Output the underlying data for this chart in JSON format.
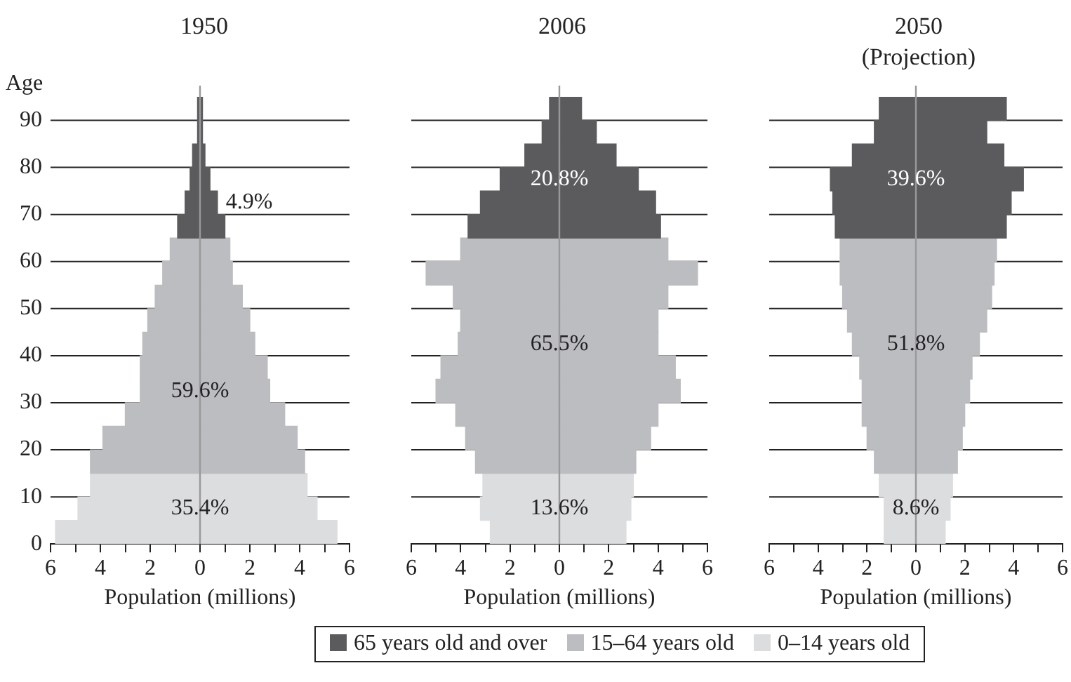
{
  "chart_data": [
    {
      "type": "bar",
      "orientation": "horizontal",
      "stacked": true,
      "title": "1950",
      "xlabel": "Population (millions)",
      "ylabel": "Age",
      "categories": [
        "90",
        null,
        "80",
        null,
        "70",
        null,
        "60",
        null,
        "50",
        null,
        "40",
        null,
        "30",
        null,
        "20",
        null,
        "10",
        null,
        "0"
      ],
      "series": [
        {
          "color": "#5b5b5d",
          "values": [
            0.1,
            0.1,
            0.2,
            0.4,
            0.7,
            1.0,
            null,
            null,
            null,
            null,
            null,
            null,
            null,
            null,
            null,
            null,
            null,
            null,
            null
          ]
        },
        {
          "color": "#bcbdc0",
          "values": [
            null,
            null,
            null,
            null,
            null,
            null,
            1.2,
            1.3,
            1.7,
            2.0,
            2.2,
            2.7,
            2.8,
            3.4,
            3.9,
            4.2,
            null,
            null,
            null
          ]
        },
        {
          "color": "#dcdddf",
          "values": [
            null,
            null,
            null,
            null,
            null,
            null,
            null,
            null,
            null,
            null,
            null,
            null,
            null,
            null,
            null,
            null,
            4.3,
            4.7,
            5.5
          ]
        },
        {
          "color": "#5b5b5d",
          "values": [
            -0.1,
            -0.1,
            -0.3,
            -0.4,
            -0.6,
            -0.9,
            null,
            null,
            null,
            null,
            null,
            null,
            null,
            null,
            null,
            null,
            null,
            null,
            null
          ]
        },
        {
          "color": "#bcbdc0",
          "values": [
            null,
            null,
            null,
            null,
            null,
            null,
            -1.2,
            -1.5,
            -1.8,
            -2.1,
            -2.3,
            -2.4,
            -2.4,
            -3.0,
            -3.9,
            -4.4,
            null,
            null,
            null
          ]
        },
        {
          "color": "#dcdddf",
          "values": [
            null,
            null,
            null,
            null,
            null,
            null,
            null,
            null,
            null,
            null,
            null,
            null,
            null,
            null,
            null,
            null,
            -4.4,
            -4.9,
            -5.8
          ]
        }
      ],
      "xlim": [
        -6,
        6
      ],
      "xticks": [
        {
          "value": -6,
          "label": "6"
        },
        {
          "value": -5,
          "label": null
        },
        {
          "value": -4,
          "label": "4"
        },
        {
          "value": -3,
          "label": null
        },
        {
          "value": -2,
          "label": "2"
        },
        {
          "value": -1,
          "label": null
        },
        0,
        {
          "value": 1,
          "label": null
        },
        2,
        {
          "value": 3,
          "label": null
        },
        4,
        {
          "value": 5,
          "label": null
        },
        6
      ],
      "grid": "y",
      "ref_lines": [
        {
          "axis": "x",
          "value": 0,
          "color": "#999999"
        }
      ],
      "annotations": [
        "4.9%",
        "59.6%",
        "35.4%"
      ]
    },
    {
      "type": "bar",
      "orientation": "horizontal",
      "stacked": true,
      "title": "2006",
      "xlabel": "Population (millions)",
      "legend": "bottom",
      "tick_labels": "x",
      "categories": [
        "90",
        null,
        "80",
        null,
        "70",
        null,
        "60",
        null,
        "50",
        null,
        "40",
        null,
        "30",
        null,
        "20",
        null,
        "10",
        null,
        "0"
      ],
      "series": [
        {
          "name": "65 years old and over",
          "color": "#5b5b5d",
          "values": [
            0.9,
            1.5,
            2.3,
            3.2,
            3.9,
            4.1,
            null,
            null,
            null,
            null,
            null,
            null,
            null,
            null,
            null,
            null,
            null,
            null,
            null
          ]
        },
        {
          "name": "15–64 years old",
          "color": "#bcbdc0",
          "values": [
            null,
            null,
            null,
            null,
            null,
            null,
            4.4,
            5.6,
            4.4,
            4.0,
            4.0,
            4.7,
            4.9,
            4.0,
            3.7,
            3.1,
            null,
            null,
            null
          ]
        },
        {
          "name": "0–14 years old",
          "color": "#dcdddf",
          "values": [
            null,
            null,
            null,
            null,
            null,
            null,
            null,
            null,
            null,
            null,
            null,
            null,
            null,
            null,
            null,
            null,
            3.0,
            2.9,
            2.7
          ]
        },
        {
          "color": "#5b5b5d",
          "values": [
            -0.4,
            -0.7,
            -1.4,
            -2.4,
            -3.2,
            -3.7,
            null,
            null,
            null,
            null,
            null,
            null,
            null,
            null,
            null,
            null,
            null,
            null,
            null
          ]
        },
        {
          "color": "#bcbdc0",
          "values": [
            null,
            null,
            null,
            null,
            null,
            null,
            -4.0,
            -5.4,
            -4.3,
            -4.0,
            -4.1,
            -4.8,
            -5.0,
            -4.2,
            -3.8,
            -3.4,
            null,
            null,
            null
          ]
        },
        {
          "color": "#dcdddf",
          "values": [
            null,
            null,
            null,
            null,
            null,
            null,
            null,
            null,
            null,
            null,
            null,
            null,
            null,
            null,
            null,
            null,
            -3.1,
            -3.2,
            -2.8
          ]
        }
      ],
      "xlim": [
        -6,
        6
      ],
      "xticks": [
        {
          "value": -6,
          "label": "6"
        },
        {
          "value": -5,
          "label": null
        },
        {
          "value": -4,
          "label": "4"
        },
        {
          "value": -3,
          "label": null
        },
        {
          "value": -2,
          "label": "2"
        },
        {
          "value": -1,
          "label": null
        },
        0,
        {
          "value": 1,
          "label": null
        },
        2,
        {
          "value": 3,
          "label": null
        },
        4,
        {
          "value": 5,
          "label": null
        },
        6
      ],
      "grid": "y",
      "ref_lines": [
        {
          "axis": "x",
          "value": 0,
          "color": "#999999"
        }
      ],
      "annotations": [
        "20.8%",
        "65.5%",
        "13.6%"
      ]
    },
    {
      "type": "bar",
      "orientation": "horizontal",
      "stacked": true,
      "title": "2050",
      "subtitle": "(Projection)",
      "xlabel": "Population (millions)",
      "tick_labels": "x",
      "categories": [
        "90",
        null,
        "80",
        null,
        "70",
        null,
        "60",
        null,
        "50",
        null,
        "40",
        null,
        "30",
        null,
        "20",
        null,
        "10",
        null,
        "0"
      ],
      "series": [
        {
          "color": "#5b5b5d",
          "values": [
            3.7,
            2.9,
            3.6,
            4.4,
            3.9,
            3.7,
            null,
            null,
            null,
            null,
            null,
            null,
            null,
            null,
            null,
            null,
            null,
            null,
            null
          ]
        },
        {
          "color": "#bcbdc0",
          "values": [
            null,
            null,
            null,
            null,
            null,
            null,
            3.3,
            3.2,
            3.1,
            2.9,
            2.6,
            2.3,
            2.2,
            2.0,
            1.9,
            1.7,
            null,
            null,
            null
          ]
        },
        {
          "color": "#dcdddf",
          "values": [
            null,
            null,
            null,
            null,
            null,
            null,
            null,
            null,
            null,
            null,
            null,
            null,
            null,
            null,
            null,
            null,
            1.5,
            1.4,
            1.2
          ]
        },
        {
          "color": "#5b5b5d",
          "values": [
            -1.5,
            -1.7,
            -2.6,
            -3.5,
            -3.4,
            -3.3,
            null,
            null,
            null,
            null,
            null,
            null,
            null,
            null,
            null,
            null,
            null,
            null,
            null
          ]
        },
        {
          "color": "#bcbdc0",
          "values": [
            null,
            null,
            null,
            null,
            null,
            null,
            -3.1,
            -3.1,
            -3.0,
            -2.8,
            -2.6,
            -2.3,
            -2.2,
            -2.2,
            -2.0,
            -1.7,
            null,
            null,
            null
          ]
        },
        {
          "color": "#dcdddf",
          "values": [
            null,
            null,
            null,
            null,
            null,
            null,
            null,
            null,
            null,
            null,
            null,
            null,
            null,
            null,
            null,
            null,
            -1.5,
            -1.3,
            -1.3
          ]
        }
      ],
      "xlim": [
        -6,
        6
      ],
      "xticks": [
        {
          "value": -6,
          "label": "6"
        },
        {
          "value": -5,
          "label": null
        },
        {
          "value": -4,
          "label": "4"
        },
        {
          "value": -3,
          "label": null
        },
        {
          "value": -2,
          "label": "2"
        },
        {
          "value": -1,
          "label": null
        },
        0,
        {
          "value": 1,
          "label": null
        },
        2,
        {
          "value": 3,
          "label": null
        },
        4,
        {
          "value": 5,
          "label": null
        },
        6
      ],
      "grid": "y",
      "ref_lines": [
        {
          "axis": "x",
          "value": 0,
          "color": "#999999"
        }
      ],
      "annotations": [
        "39.6%",
        "51.8%",
        "8.6%"
      ]
    }
  ]
}
